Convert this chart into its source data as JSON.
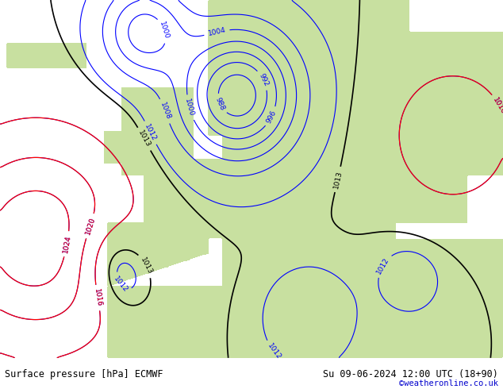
{
  "title_left": "Surface pressure [hPa] ECMWF",
  "title_right": "Su 09-06-2024 12:00 UTC (18+90)",
  "copyright": "©weatheronline.co.uk",
  "bg_ocean": "#d8e8f0",
  "bg_land_light": "#c8e0a0",
  "bg_land_dark": "#a8c880",
  "fig_width": 6.34,
  "fig_height": 4.9,
  "dpi": 100,
  "bottom_bar_color": "#e8e8e8",
  "bottom_text_color": "#000000",
  "copyright_color": "#0000cc",
  "font_size_labels": 8,
  "font_size_bottom": 8.5
}
